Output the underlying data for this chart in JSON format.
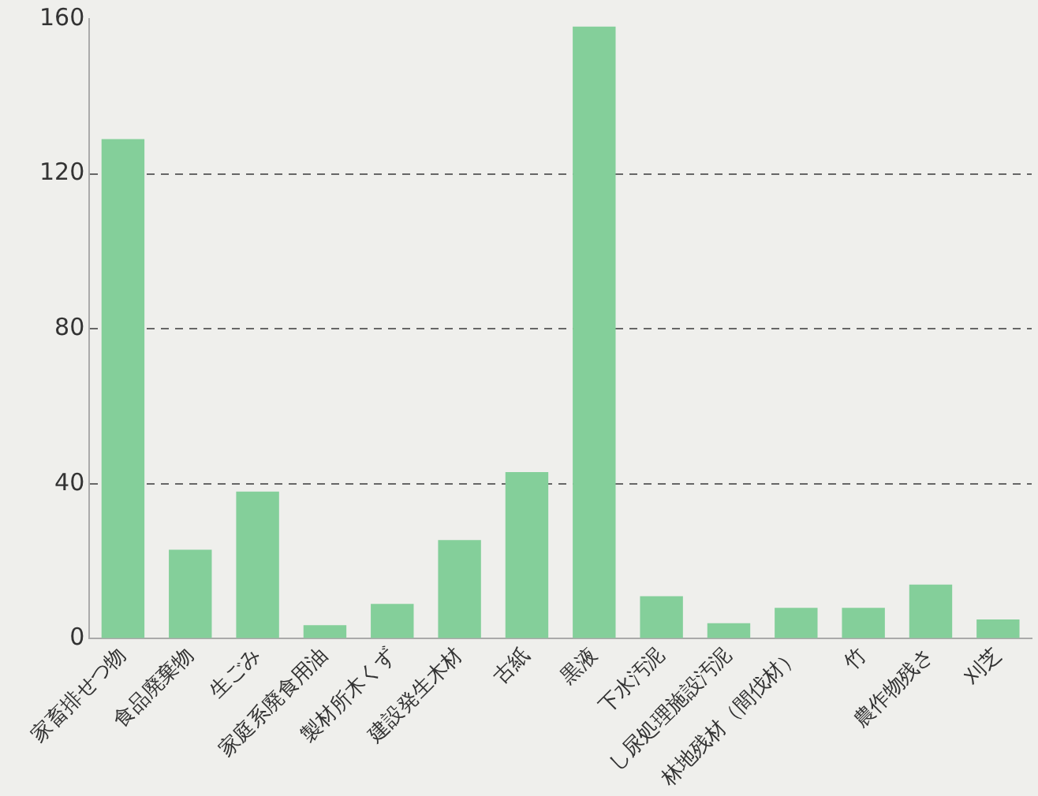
{
  "chart_data": {
    "type": "bar",
    "categories": [
      "家畜排せつ物",
      "食品廃棄物",
      "生ごみ",
      "家庭系廃食用油",
      "製材所木くず",
      "建設発生木材",
      "古紙",
      "黒液",
      "下水汚泥",
      "し尿処理施設汚泥",
      "林地残材（間伐材）",
      "竹",
      "農作物残さ",
      "刈芝"
    ],
    "values": [
      129,
      23,
      38,
      3.5,
      9,
      25.5,
      43,
      158,
      11,
      4,
      8,
      8,
      14,
      5
    ],
    "color": "#84cf9a",
    "ylim": [
      0,
      160
    ],
    "yticks": [
      0,
      40,
      80,
      120,
      160
    ],
    "grid": "y",
    "line_style": "dashed"
  }
}
